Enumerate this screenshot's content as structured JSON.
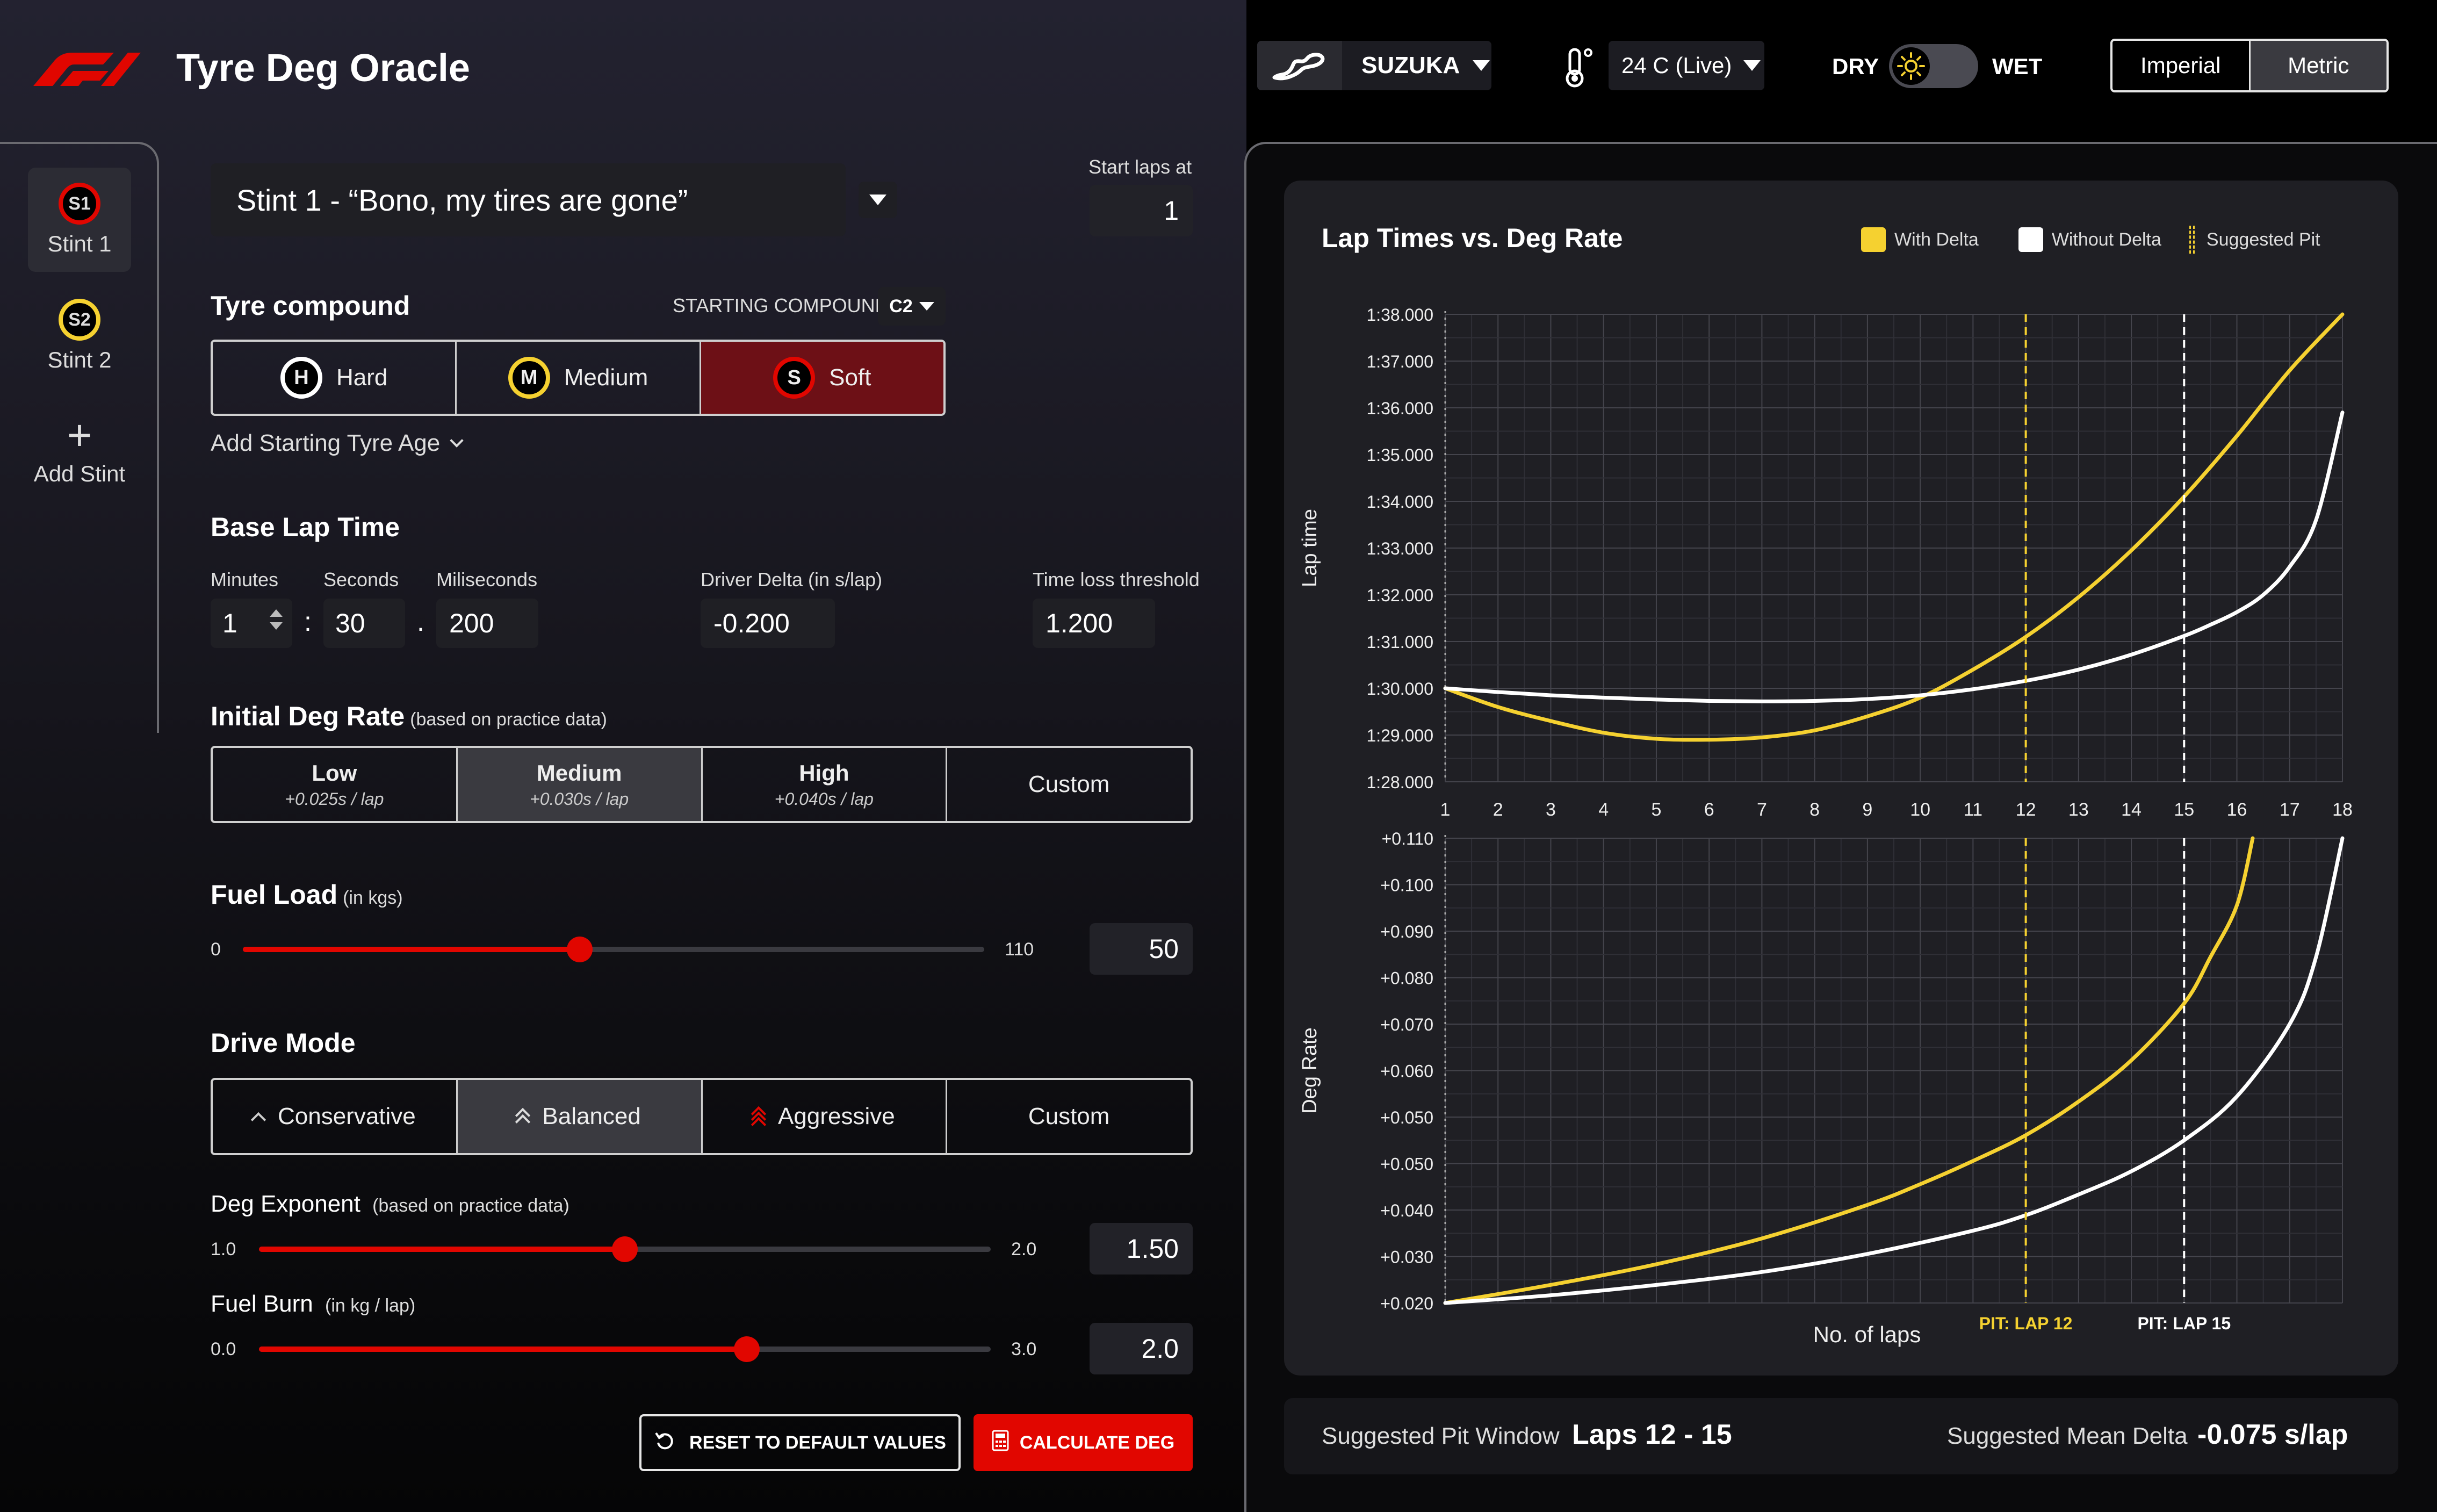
{
  "header": {
    "app_title": "Tyre Deg Oracle",
    "track": "SUZUKA",
    "temperature": "24 C (Live)",
    "dry_label": "DRY",
    "wet_label": "WET",
    "units": [
      "Imperial",
      "Metric"
    ],
    "selected_unit": "Metric"
  },
  "sidebar": {
    "stints": [
      {
        "badge": "S1",
        "label": "Stint 1",
        "color": "#e10600"
      },
      {
        "badge": "S2",
        "label": "Stint 2",
        "color": "#f5d130"
      }
    ],
    "add_stint_label": "Add Stint"
  },
  "stint": {
    "name": "Stint 1 - “Bono, my tires are gone”",
    "start_laps_label": "Start laps at",
    "start_laps_value": "1"
  },
  "tyre": {
    "heading": "Tyre compound",
    "starting_compound_label": "STARTING COMPOUND:",
    "starting_compound_value": "C2",
    "options": [
      {
        "letter": "H",
        "label": "Hard",
        "color": "#ffffff"
      },
      {
        "letter": "M",
        "label": "Medium",
        "color": "#f5d130"
      },
      {
        "letter": "S",
        "label": "Soft",
        "color": "#e10600"
      }
    ],
    "selected": "Soft",
    "add_age_label": "Add Starting Tyre Age"
  },
  "base_lap": {
    "heading": "Base Lap Time",
    "minutes_label": "Minutes",
    "seconds_label": "Seconds",
    "ms_label": "Miliseconds",
    "minutes": "1",
    "seconds": "30",
    "ms": "200",
    "driver_delta_label": "Driver Delta (in s/lap)",
    "driver_delta": "-0.200",
    "threshold_label": "Time loss threshold",
    "threshold": "1.200"
  },
  "deg_rate": {
    "heading": "Initial Deg Rate",
    "subheading": "(based on practice data)",
    "options": [
      {
        "label": "Low",
        "sub": "+0.025s / lap"
      },
      {
        "label": "Medium",
        "sub": "+0.030s / lap"
      },
      {
        "label": "High",
        "sub": "+0.040s / lap"
      },
      {
        "label": "Custom",
        "sub": ""
      }
    ],
    "selected": "Medium"
  },
  "fuel_load": {
    "heading": "Fuel Load",
    "subheading": "(in kgs)",
    "min": "0",
    "max": "110",
    "value": "50",
    "fraction": 0.4545
  },
  "drive_mode": {
    "heading": "Drive Mode",
    "options": [
      "Conservative",
      "Balanced",
      "Aggressive",
      "Custom"
    ],
    "selected": "Balanced"
  },
  "deg_exponent": {
    "label": "Deg Exponent",
    "sublabel": "(based on practice data)",
    "min": "1.0",
    "max": "2.0",
    "value": "1.50",
    "fraction": 0.5
  },
  "fuel_burn": {
    "label": "Fuel Burn",
    "sublabel": "(in kg / lap)",
    "min": "0.0",
    "max": "3.0",
    "value": "2.0",
    "fraction": 0.6667
  },
  "actions": {
    "reset_label": "RESET TO DEFAULT VALUES",
    "calculate_label": "CALCULATE DEG"
  },
  "chart_data": {
    "type": "line",
    "title": "Lap Times vs. Deg Rate",
    "legend": [
      {
        "label": "With Delta",
        "color": "#f5d130"
      },
      {
        "label": "Without Delta",
        "color": "#ffffff"
      },
      {
        "label": "Suggested Pit",
        "color": "#f5d130"
      }
    ],
    "xlabel": "No. of laps",
    "x": [
      1,
      2,
      3,
      4,
      5,
      6,
      7,
      8,
      9,
      10,
      11,
      12,
      13,
      14,
      15,
      16,
      17,
      18
    ],
    "top": {
      "ylabel": "Lap time",
      "ylim": [
        88,
        98
      ],
      "yticks": [
        "1:28.000",
        "1:29.000",
        "1:30.000",
        "1:31.000",
        "1:32.000",
        "1:33.000",
        "1:34.000",
        "1:35.000",
        "1:36.000",
        "1:37.000",
        "1:38.000"
      ],
      "series": [
        {
          "name": "With Delta",
          "color": "#f5d130",
          "x": [
            1,
            2,
            3,
            4,
            5,
            6,
            7,
            8,
            9,
            10,
            11,
            12,
            13,
            14,
            15,
            16,
            17,
            18
          ],
          "y": [
            90.0,
            89.6,
            89.3,
            89.05,
            88.92,
            88.9,
            88.95,
            89.1,
            89.4,
            89.8,
            90.4,
            91.1,
            91.95,
            92.95,
            94.1,
            95.4,
            96.8,
            98.0
          ]
        },
        {
          "name": "Without Delta",
          "color": "#ffffff",
          "x": [
            1,
            2,
            3,
            4,
            5,
            6,
            7,
            8,
            9,
            10,
            11,
            12,
            13,
            14,
            15,
            15.5,
            16,
            16.5,
            17,
            17.5,
            18
          ],
          "y": [
            90.0,
            89.92,
            89.85,
            89.8,
            89.76,
            89.73,
            89.72,
            89.73,
            89.77,
            89.85,
            89.98,
            90.16,
            90.4,
            90.72,
            91.12,
            91.36,
            91.63,
            92.0,
            92.6,
            93.6,
            95.9
          ]
        }
      ]
    },
    "bottom": {
      "ylabel": "Deg Rate",
      "yticks": [
        "+0.020",
        "+0.030",
        "+0.040",
        "+0.050",
        "+0.050",
        "+0.060",
        "+0.070",
        "+0.080",
        "+0.090",
        "+0.100",
        "+0.110"
      ],
      "ylim": [
        0.02,
        0.11
      ],
      "series": [
        {
          "name": "With Delta",
          "color": "#f5d130",
          "x": [
            1,
            3,
            5,
            7,
            9,
            10,
            11,
            12,
            13,
            14,
            15,
            15.5,
            16,
            16.3
          ],
          "y": [
            0.02,
            0.0235,
            0.0275,
            0.0325,
            0.039,
            0.043,
            0.0475,
            0.0525,
            0.059,
            0.067,
            0.078,
            0.087,
            0.097,
            0.11
          ]
        },
        {
          "name": "Without Delta",
          "color": "#ffffff",
          "x": [
            1,
            3,
            5,
            7,
            9,
            11,
            12,
            13,
            14,
            15,
            16,
            17,
            17.5,
            18
          ],
          "y": [
            0.02,
            0.0215,
            0.0235,
            0.026,
            0.0295,
            0.034,
            0.037,
            0.041,
            0.0455,
            0.0515,
            0.06,
            0.074,
            0.087,
            0.11
          ]
        }
      ]
    },
    "pits": [
      {
        "lap": 12,
        "label": "PIT: LAP 12",
        "color": "#f5d130"
      },
      {
        "lap": 15,
        "label": "PIT: LAP 15",
        "color": "#ffffff"
      }
    ]
  },
  "summary": {
    "pit_window_label": "Suggested Pit Window",
    "pit_window_value": "Laps 12 - 15",
    "mean_delta_label": "Suggested Mean Delta",
    "mean_delta_value": "-0.075 s/lap"
  }
}
